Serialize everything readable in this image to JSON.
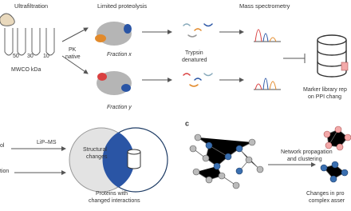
{
  "panel_a": {
    "ultrafiltration": "Ultrafiltration",
    "limited_proteolysis": "Limited proteolysis",
    "mass_spectrometry": "Mass spectrometry",
    "cutoffs": [
      "50",
      "30",
      "10"
    ],
    "mwco_label": "MWCO kDa",
    "pk_lines": [
      "PK",
      "native"
    ],
    "fraction_x": "Fraction x",
    "fraction_y": "Fraction y",
    "trypsin_lines": [
      "Trypsin",
      "denatured"
    ],
    "marker_lines": [
      "Marker library rep",
      "on PPI chang"
    ]
  },
  "panel_b": {
    "left_top": "ol",
    "left_bottom": "tion",
    "lipms": "LiP–MS",
    "structural_lines": [
      "Structural",
      "changes"
    ],
    "proteins_lines": [
      "Proteins with",
      "changed interactions"
    ]
  },
  "panel_c": {
    "letter": "c",
    "network_lines": [
      "Network propagation",
      "and clustering"
    ],
    "changes_lines": [
      "Changes in pro",
      "complex asser"
    ]
  }
}
